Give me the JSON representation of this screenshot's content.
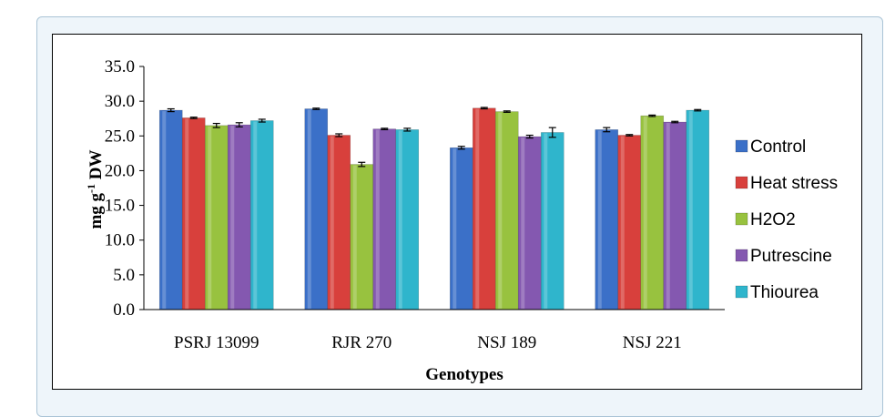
{
  "chart_data": {
    "type": "bar",
    "categories": [
      "PSRJ 13099",
      "RJR 270",
      "NSJ 189",
      "NSJ 221"
    ],
    "series": [
      {
        "name": "Control",
        "color": "#3b70c8",
        "values": [
          28.7,
          28.9,
          23.3,
          25.9
        ],
        "errors": [
          0.2,
          0.1,
          0.2,
          0.3
        ]
      },
      {
        "name": "Heat stress",
        "color": "#d8403c",
        "values": [
          27.6,
          25.1,
          29.0,
          25.1
        ],
        "errors": [
          0.1,
          0.2,
          0.1,
          0.1
        ]
      },
      {
        "name": "H2O2",
        "color": "#98c23f",
        "values": [
          26.5,
          20.9,
          28.5,
          27.9
        ],
        "errors": [
          0.3,
          0.3,
          0.1,
          0.1
        ]
      },
      {
        "name": "Putrescine",
        "color": "#8458b0",
        "values": [
          26.6,
          26.0,
          24.9,
          27.0
        ],
        "errors": [
          0.3,
          0.1,
          0.2,
          0.1
        ]
      },
      {
        "name": "Thiourea",
        "color": "#2fb5cc",
        "values": [
          27.2,
          25.9,
          25.5,
          28.7
        ],
        "errors": [
          0.2,
          0.2,
          0.7,
          0.1
        ]
      }
    ],
    "ylim": [
      0,
      35
    ],
    "yticks": [
      "0.0",
      "5.0",
      "10.0",
      "15.0",
      "20.0",
      "25.0",
      "30.0",
      "35.0"
    ],
    "ylabel_main": "mg g",
    "ylabel_sup": "-1",
    "ylabel_tail": " DW",
    "xlabel": "Genotypes",
    "legend_position": "right",
    "grid": false
  }
}
